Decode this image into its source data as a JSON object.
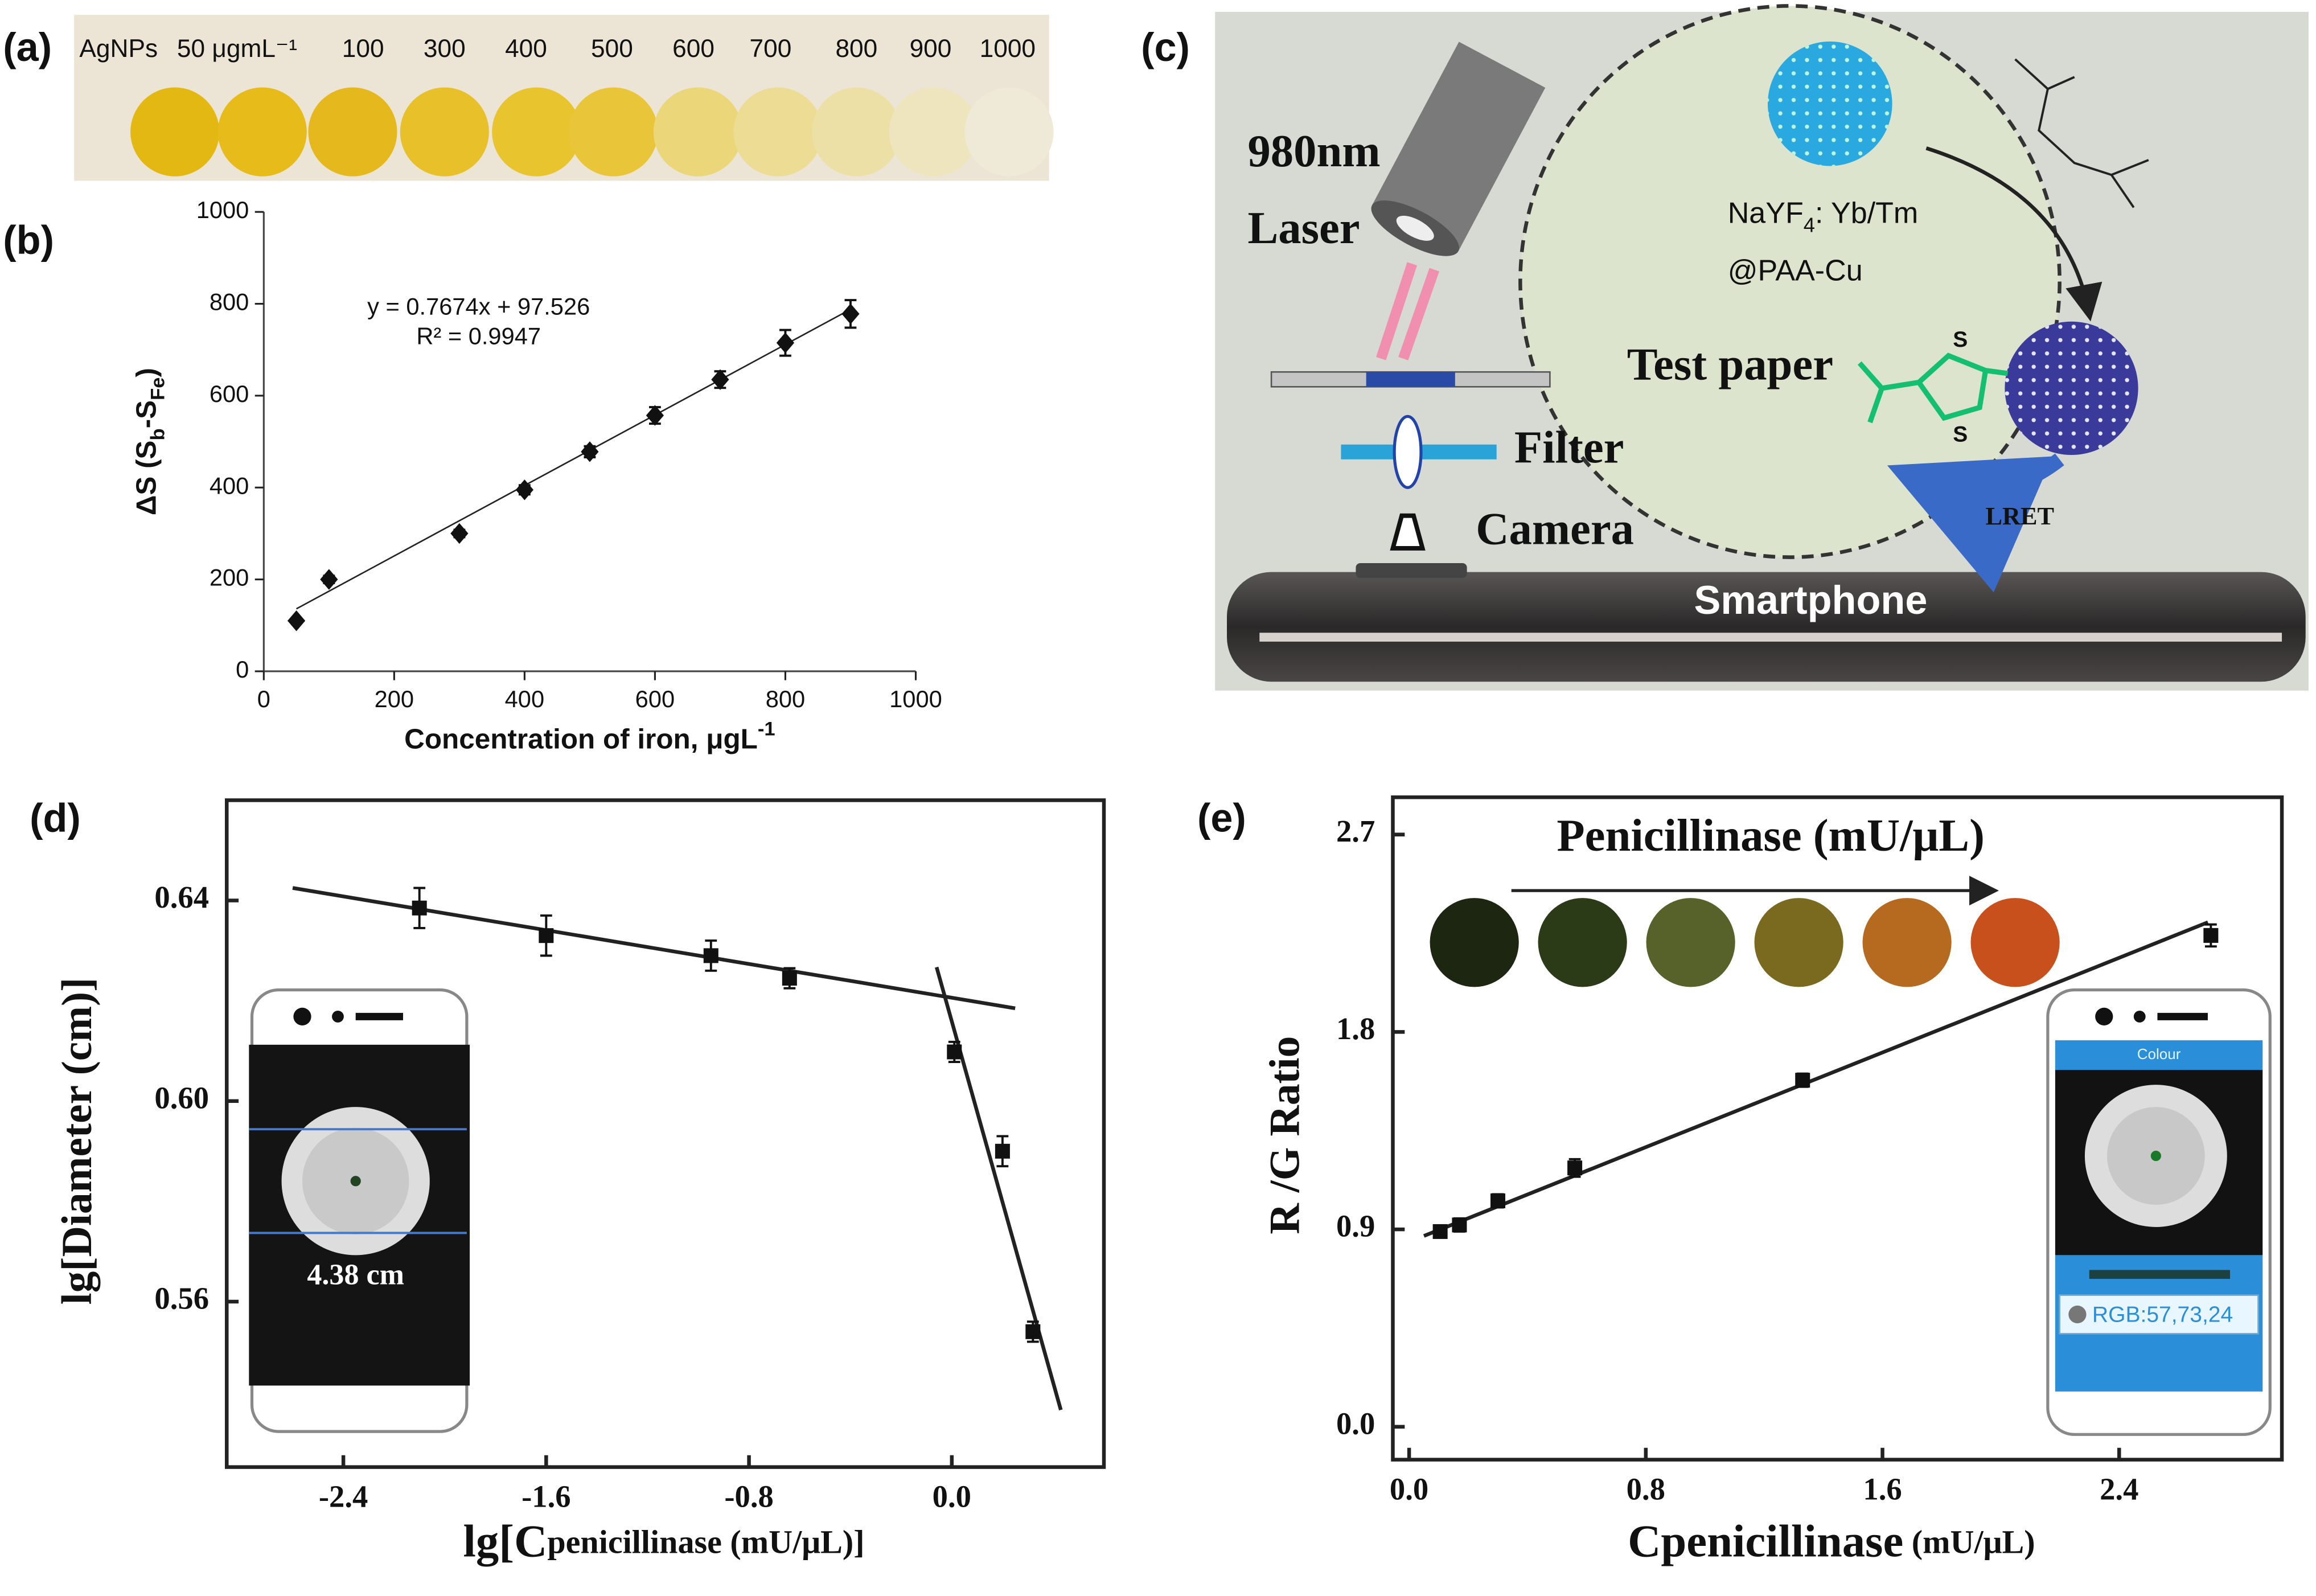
{
  "panels": {
    "a": {
      "label": "(a)",
      "samples": [
        "AgNPs",
        "50 μgmL⁻¹",
        "100",
        "300",
        "400",
        "500",
        "600",
        "700",
        "800",
        "900",
        "1000"
      ],
      "colors": [
        "#e3b812",
        "#e6bb1a",
        "#e5b91e",
        "#e8c12a",
        "#e8c42f",
        "#e9c53a",
        "#ecd67a",
        "#ecdc94",
        "#ede0a6",
        "#eee4be",
        "#efe9d8"
      ]
    },
    "c": {
      "label": "(c)",
      "laser": [
        "980nm",
        "Laser"
      ],
      "test_paper": "Test paper",
      "filter": "Filter",
      "camera": "Camera",
      "smartphone": "Smartphone",
      "particle": [
        {
          "text": "NaYF"
        },
        {
          "sub": "4"
        },
        {
          "text": ": Yb/Tm"
        }
      ],
      "coating": "@PAA-Cu",
      "transfer": "LRET",
      "atoms": [
        "S",
        "S"
      ]
    }
  },
  "chart_data": [
    {
      "type": "scatter",
      "panel": "(b)",
      "x_label": [
        {
          "text": "Concentration of iron, μgL"
        },
        {
          "sup": "-1"
        }
      ],
      "y_label": [
        {
          "text": "ΔS (S"
        },
        {
          "sub": "b"
        },
        {
          "text": "-S"
        },
        {
          "sub": "Fe"
        },
        {
          "text": ")"
        }
      ],
      "annotations": [
        "y = 0.7674x + 97.526",
        "R² = 0.9947"
      ],
      "xlim": [
        0,
        1000
      ],
      "xticks": [
        0,
        200,
        400,
        600,
        800,
        1000
      ],
      "ylim": [
        0,
        1000
      ],
      "yticks": [
        0,
        200,
        400,
        600,
        800,
        1000
      ],
      "x": [
        50,
        100,
        300,
        400,
        500,
        600,
        700,
        800,
        900
      ],
      "values": [
        110,
        200,
        300,
        395,
        478,
        557,
        635,
        715,
        778
      ],
      "errors": [
        5,
        8,
        8,
        10,
        12,
        18,
        18,
        28,
        30
      ],
      "color": "#111",
      "marker": "diamond",
      "fit": [
        {
          "x": [
            50,
            900
          ],
          "y": [
            136,
            788
          ]
        }
      ]
    },
    {
      "type": "scatter",
      "panel": "(d)",
      "x_label": [
        {
          "text": "lg[C"
        },
        {
          "small": "penicillinase (mU/μL)]"
        }
      ],
      "y_label": [
        {
          "text": "lg[Diameter (cm)]"
        }
      ],
      "xlim": [
        -2.86,
        0.6
      ],
      "xticks": [
        -2.4,
        -1.6,
        -0.8,
        {
          "value": 0,
          "label": "0.0"
        }
      ],
      "ylim": [
        0.527,
        0.66
      ],
      "yticks": [
        0.56,
        {
          "value": 0.6,
          "label": "0.60"
        },
        0.64
      ],
      "x": [
        -2.1,
        -1.6,
        -0.95,
        -0.64,
        0.01,
        0.2,
        0.32
      ],
      "values": [
        0.6385,
        0.633,
        0.629,
        0.6245,
        0.6098,
        0.59,
        0.554
      ],
      "errors": [
        0.004,
        0.004,
        0.003,
        0.002,
        0.002,
        0.003,
        0.002
      ],
      "color": "#111",
      "marker": "square",
      "fit": [
        {
          "x": [
            -2.6,
            0.25
          ],
          "y": [
            0.6425,
            0.6185
          ]
        },
        {
          "x": [
            -0.06,
            0.43
          ],
          "y": [
            0.6267,
            0.5384
          ]
        }
      ],
      "inset_text": [
        "4.38 cm"
      ]
    },
    {
      "type": "scatter",
      "panel": "(e)",
      "title": "Penicillinase (mU/μL)",
      "x_label": [
        {
          "text": "Cpenicillinase"
        },
        {
          "small": " (mU/μL)"
        }
      ],
      "y_label": [
        {
          "text": "R /G Ratio"
        }
      ],
      "xlim": [
        -0.055,
        2.95
      ],
      "xticks": [
        {
          "value": 0,
          "label": "0.0"
        },
        0.8,
        1.6,
        2.4
      ],
      "ylim": [
        -0.15,
        2.87
      ],
      "yticks": [
        {
          "value": 0,
          "label": "0.0"
        },
        0.9,
        1.8,
        2.7
      ],
      "x": [
        0.105,
        0.17,
        0.3,
        0.56,
        1.33,
        2.71
      ],
      "values": [
        0.89,
        0.92,
        1.03,
        1.18,
        1.58,
        2.24
      ],
      "errors": [
        0.02,
        0.03,
        0.03,
        0.04,
        0.03,
        0.05
      ],
      "color": "#111",
      "marker": "square",
      "fit": [
        {
          "x": [
            0.05,
            2.7
          ],
          "y": [
            0.87,
            2.3
          ]
        }
      ],
      "swatches": [
        "#1c2610",
        "#2b3a17",
        "#56622a",
        "#7a6a20",
        "#b56a20",
        "#c8501c"
      ],
      "inset_text": [
        "Colour",
        "RGB:57,73,24"
      ]
    }
  ]
}
